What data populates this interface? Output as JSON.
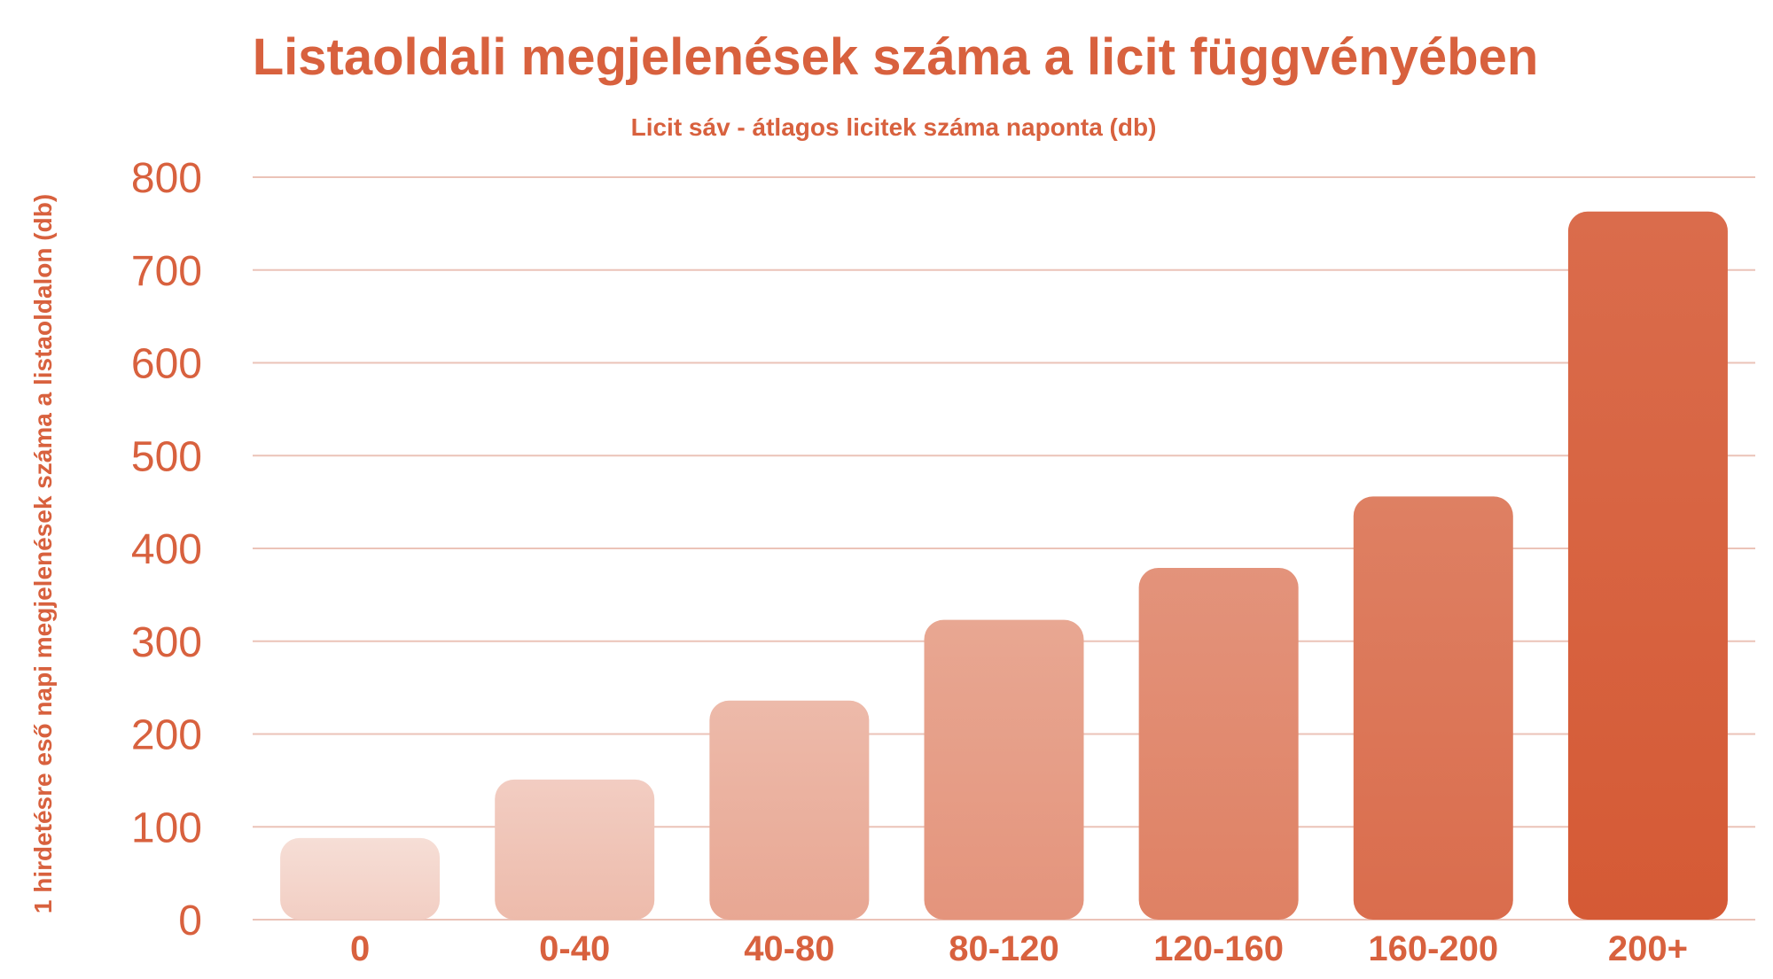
{
  "chart_data": {
    "type": "bar",
    "title": "Listaoldali megjelenések száma a licit függvényében",
    "xlabel": "Licit sáv  - átlagos licitek száma naponta (db)",
    "ylabel": "1 hirdetésre eső napi megjelenések száma a listaoldalon (db)",
    "categories": [
      "0",
      "0-40",
      "40-80",
      "80-120",
      "120-160",
      "160-200",
      "200+"
    ],
    "values": [
      88,
      151,
      236,
      323,
      379,
      456,
      763
    ],
    "ylim": [
      0,
      800
    ],
    "yticks": [
      "0",
      "100",
      "200",
      "300",
      "400",
      "500",
      "600",
      "700",
      "800"
    ],
    "grid": true,
    "legend": "none"
  },
  "colors": {
    "text": "#d8613e",
    "grid": "#ebc3b8",
    "bar_light": "#f6ded6",
    "bar_dark": "#d55a35"
  }
}
